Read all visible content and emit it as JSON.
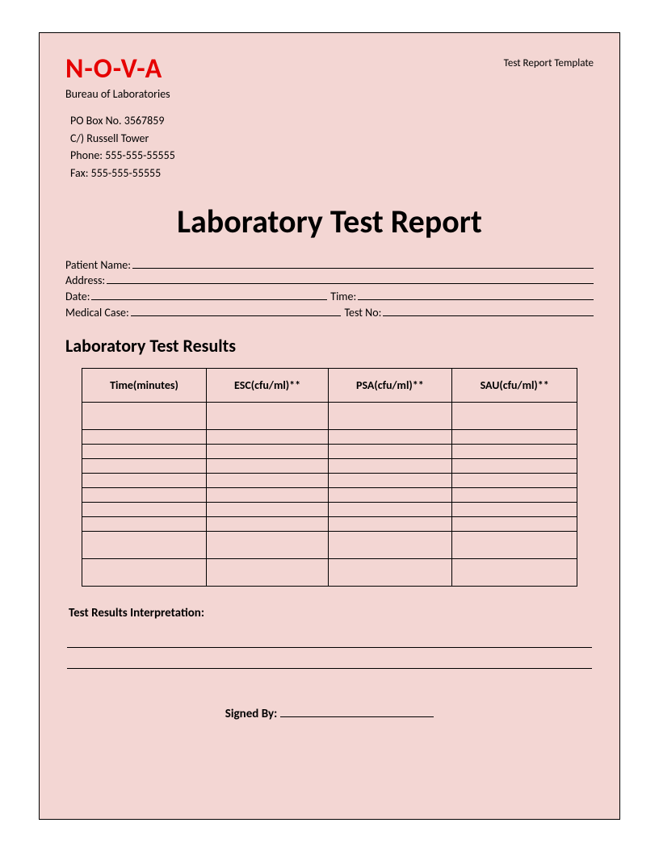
{
  "header": {
    "logo_text": "N-O-V-A",
    "logo_color": "#e60000",
    "template_label": "Test Report Template",
    "bureau": "Bureau of Laboratories",
    "contact": {
      "pobox": "PO Box No. 3567859",
      "co": "C/) Russell Tower",
      "phone": "Phone: 555-555-55555",
      "fax": "Fax: 555-555-55555"
    }
  },
  "title": "Laboratory Test Report",
  "fields": {
    "patient_name_label": "Patient Name:",
    "address_label": "Address:",
    "date_label": "Date:",
    "time_label": "Time:",
    "medical_case_label": "Medical Case:",
    "test_no_label": "Test No:"
  },
  "results": {
    "section_title": "Laboratory Test Results",
    "columns": [
      "Time(minutes)",
      "ESC(cfu/ml)**",
      "PSA(cfu/ml)**",
      "SAU(cfu/ml)**"
    ],
    "row_heights": [
      "tall",
      "short",
      "short",
      "short",
      "short",
      "short",
      "short",
      "short",
      "tall",
      "tall"
    ],
    "column_count": 4
  },
  "interpretation": {
    "label": "Test Results Interpretation:",
    "line_count": 2
  },
  "signature": {
    "label": "Signed By:"
  },
  "colors": {
    "background": "#f3d6d3",
    "border": "#000000",
    "text": "#000000"
  }
}
